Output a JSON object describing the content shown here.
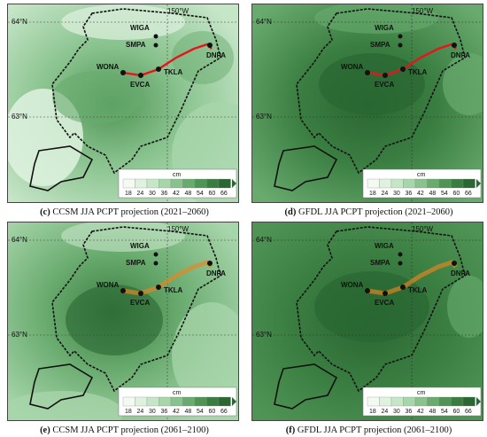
{
  "panels": [
    {
      "id": "c",
      "letter": "(c)",
      "caption": " CCSM JJA PCPT projection (2021–2060)",
      "model": "CCSM",
      "route": "red"
    },
    {
      "id": "d",
      "letter": "(d)",
      "caption": " GFDL JJA PCPT projection (2021–2060)",
      "model": "GFDL",
      "route": "red"
    },
    {
      "id": "e",
      "letter": "(e)",
      "caption": " CCSM JJA PCPT projection (2061–2100)",
      "model": "CCSM",
      "route": "orange"
    },
    {
      "id": "f",
      "letter": "(f)",
      "caption": " GFDL JJA PCPT projection (2061–2100)",
      "model": "GFDL",
      "route": "orange"
    }
  ],
  "map_labels": {
    "lon": "150°W",
    "lat_north": "64°N",
    "lat_south": "63°N",
    "stations": [
      "WIGA",
      "SMPA",
      "WONA",
      "TKLA",
      "EVCA",
      "DNPA"
    ]
  },
  "colorbar": {
    "unit": "cm",
    "ticks": [
      "18",
      "24",
      "30",
      "36",
      "42",
      "48",
      "54",
      "60",
      "66"
    ],
    "colors": [
      "#f2faf2",
      "#dff2df",
      "#c6e6c8",
      "#a8d6ab",
      "#88c28d",
      "#69ab6f",
      "#4f9455",
      "#3a7d41",
      "#2a6732"
    ]
  },
  "colors": {
    "route_red": "#e8141c",
    "route_orange": "#e8861e",
    "boundary": "#111111"
  }
}
